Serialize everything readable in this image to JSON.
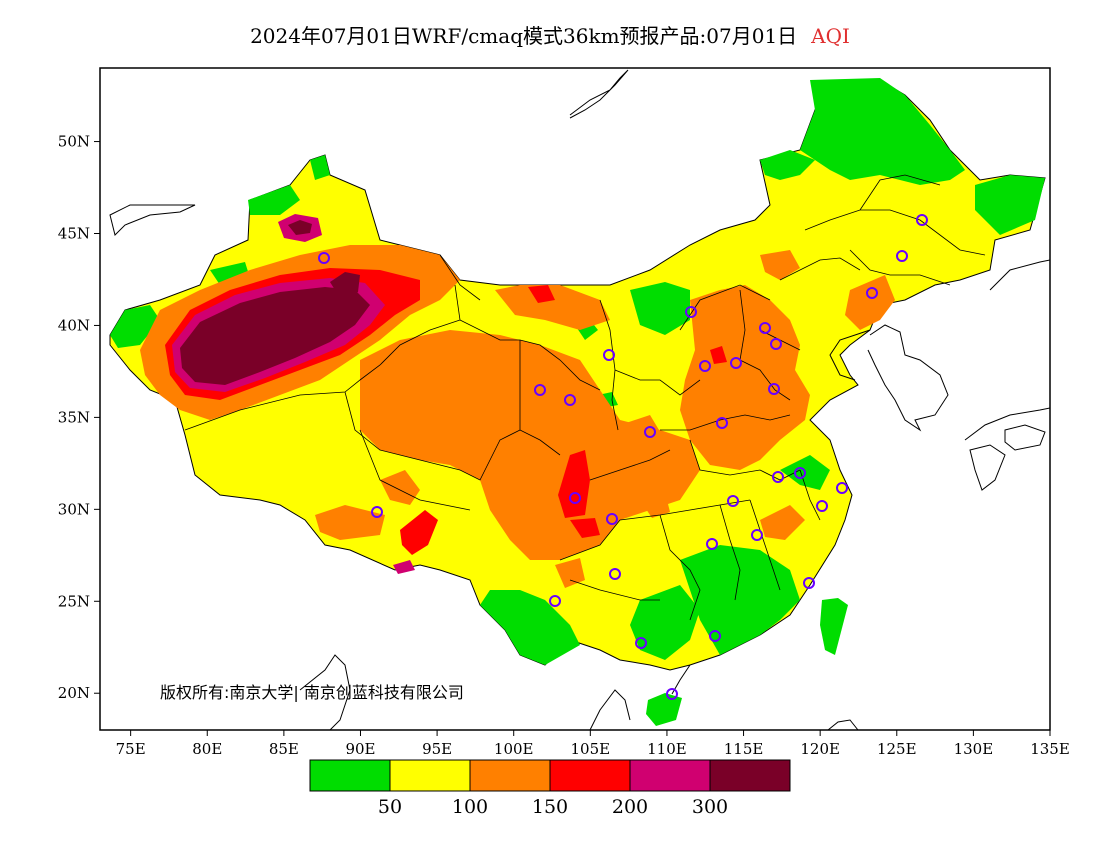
{
  "title": {
    "main": "2024年07月01日WRF/cmaq模式36km预报产品:07月01日",
    "product": "AQI",
    "product_color": "#e03030"
  },
  "copyright": "版权所有:南京大学| 南京创蓝科技有限公司",
  "axes": {
    "x_ticks": [
      "75E",
      "80E",
      "85E",
      "90E",
      "95E",
      "100E",
      "105E",
      "110E",
      "115E",
      "120E",
      "125E",
      "130E",
      "135E"
    ],
    "y_ticks": [
      "50N",
      "45N",
      "40N",
      "35N",
      "30N",
      "25N",
      "20N"
    ],
    "lon_range": [
      73,
      135
    ],
    "lat_range": [
      18,
      54
    ]
  },
  "legend": {
    "colors": [
      "#00dd00",
      "#ffff00",
      "#ff8000",
      "#ff0000",
      "#d00070",
      "#7a0028"
    ],
    "labels": [
      "50",
      "100",
      "150",
      "200",
      "300"
    ],
    "categories": [
      "0-50",
      "50-100",
      "100-150",
      "150-200",
      "200-300",
      ">300"
    ]
  }
}
